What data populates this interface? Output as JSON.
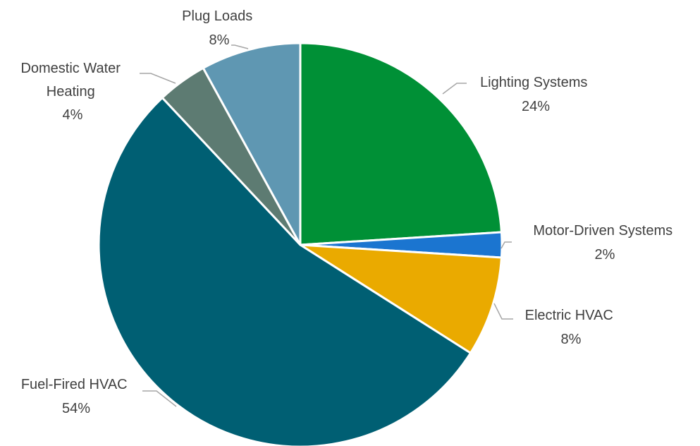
{
  "chart_data": {
    "type": "pie",
    "title": "",
    "start_angle_deg": 0,
    "direction": "clockwise",
    "slices": [
      {
        "name": "Lighting Systems",
        "value": 24,
        "label": "24%",
        "color": "#009036"
      },
      {
        "name": "Motor-Driven Systems",
        "value": 2,
        "label": "2%",
        "color": "#1b75d0"
      },
      {
        "name": "Electric HVAC",
        "value": 8,
        "label": "8%",
        "color": "#eaaa00"
      },
      {
        "name": "Fuel-Fired HVAC",
        "value": 54,
        "label": "54%",
        "color": "#005f73"
      },
      {
        "name": "Domestic Water Heating",
        "value": 4,
        "label": "4%",
        "color": "#5d7b72"
      },
      {
        "name": "Plug Loads",
        "value": 8,
        "label": "8%",
        "color": "#5f97b2"
      }
    ]
  }
}
